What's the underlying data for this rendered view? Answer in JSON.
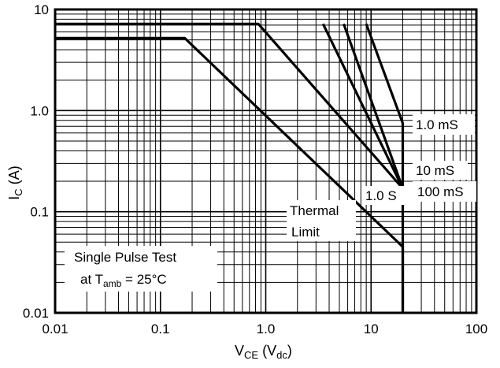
{
  "chart_data": {
    "type": "line",
    "scale": "log-log",
    "grid": true,
    "xlabel": {
      "main": "V",
      "sub": "CE",
      "rest_open": " (V",
      "rest_sub": "dc",
      "rest_close": ")"
    },
    "ylabel": {
      "main": "I",
      "sub": "C",
      "rest": " (A)"
    },
    "xlim": [
      0.01,
      100
    ],
    "ylim": [
      0.01,
      10
    ],
    "xticks": [
      "0.01",
      "0.1",
      "1.0",
      "10",
      "100"
    ],
    "yticks": [
      "0.01",
      "0.1",
      "1.0",
      "10"
    ],
    "series": [
      {
        "name": "1.0 S",
        "x": [
          0.01,
          0.17,
          20,
          20
        ],
        "y": [
          5.2,
          5.2,
          0.045,
          0.01
        ]
      },
      {
        "name": "100 mS",
        "x": [
          0.01,
          0.85,
          20
        ],
        "y": [
          7.2,
          7.2,
          0.17
        ]
      },
      {
        "name": "10 mS",
        "x": [
          3.5,
          20
        ],
        "y": [
          7.2,
          0.17
        ]
      },
      {
        "name": "Thermal Limit",
        "x": [
          5.5,
          20
        ],
        "y": [
          7.2,
          0.17
        ]
      },
      {
        "name": "1.0 mS",
        "x": [
          9,
          20,
          20
        ],
        "y": [
          7.2,
          0.75,
          0.01
        ]
      }
    ],
    "annotations": {
      "one_ms": "1.0 mS",
      "ten_ms": "10 mS",
      "hundred_ms": "100 mS",
      "one_s": "1.0 S",
      "thermal_line1": "Thermal",
      "thermal_line2": "Limit",
      "test_line1": "Single Pulse Test",
      "test_line2_prefix": "at T",
      "test_line2_sub": "amb",
      "test_line2_suffix": " = 25°C"
    }
  }
}
